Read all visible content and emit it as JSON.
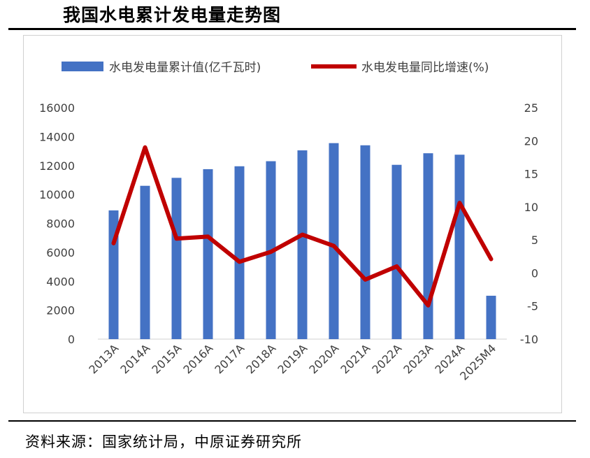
{
  "header": {
    "title": "我国水电累计发电量走势图"
  },
  "footer": {
    "source": "资料来源：国家统计局，中原证券研究所"
  },
  "chart_data": {
    "type": "bar+line",
    "title": "我国水电累计发电量走势图",
    "categories": [
      "2013A",
      "2014A",
      "2015A",
      "2016A",
      "2017A",
      "2018A",
      "2019A",
      "2020A",
      "2021A",
      "2022A",
      "2023A",
      "2024A",
      "2025M4"
    ],
    "series": [
      {
        "name": "水电发电量累计值(亿千瓦时)",
        "type": "bar",
        "axis": "left",
        "color": "#4472C4",
        "values": [
          8900,
          10600,
          11150,
          11750,
          11950,
          12300,
          13050,
          13550,
          13400,
          12050,
          12850,
          12750,
          3000
        ]
      },
      {
        "name": "水电发电量同比增速(%)",
        "type": "line",
        "axis": "right",
        "color": "#C00000",
        "values": [
          4.5,
          19.0,
          5.2,
          5.5,
          1.7,
          3.2,
          5.8,
          4.1,
          -1.0,
          1.0,
          -4.9,
          10.6,
          2.1
        ]
      }
    ],
    "y_left": {
      "min": 0,
      "max": 16000,
      "ticks": [
        "0",
        "2000",
        "4000",
        "6000",
        "8000",
        "10000",
        "12000",
        "14000",
        "16000"
      ]
    },
    "y_right": {
      "min": -10,
      "max": 25,
      "ticks": [
        "-10",
        "-5",
        "0",
        "5",
        "10",
        "15",
        "20",
        "25"
      ]
    },
    "legend_position": "top",
    "grid": false
  }
}
